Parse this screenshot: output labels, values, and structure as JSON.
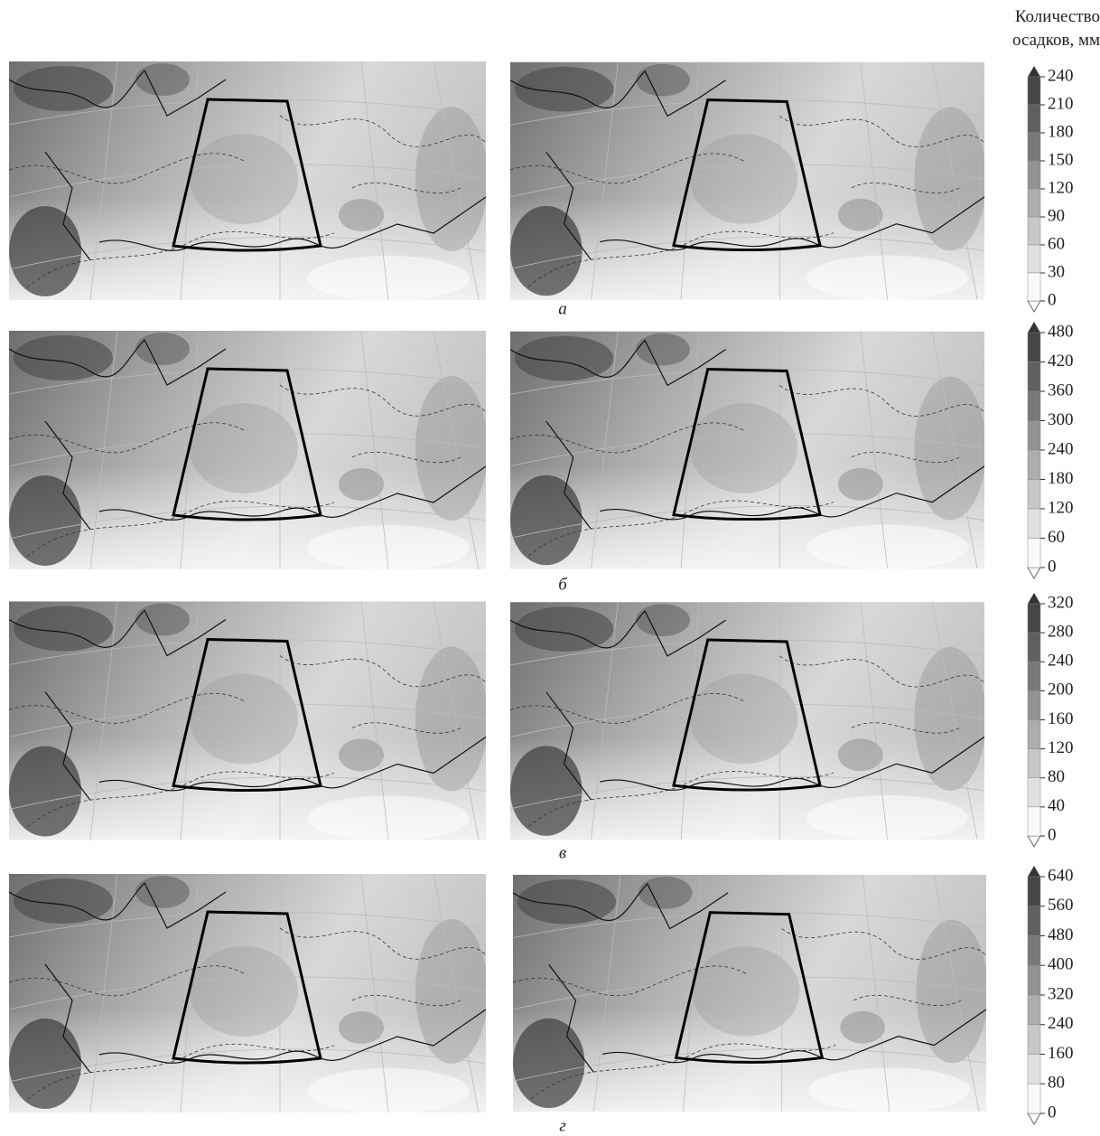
{
  "legend_title": "Количество осадков, мм",
  "rows": [
    {
      "label": "а",
      "colorbar_ticks": [
        240,
        210,
        180,
        150,
        120,
        90,
        60,
        30,
        0
      ]
    },
    {
      "label": "б",
      "colorbar_ticks": [
        480,
        420,
        360,
        300,
        240,
        180,
        120,
        60,
        0
      ]
    },
    {
      "label": "в",
      "colorbar_ticks": [
        320,
        280,
        240,
        200,
        160,
        120,
        80,
        40,
        0
      ]
    },
    {
      "label": "г",
      "colorbar_ticks": [
        640,
        560,
        480,
        400,
        320,
        240,
        160,
        80,
        0
      ]
    }
  ]
}
